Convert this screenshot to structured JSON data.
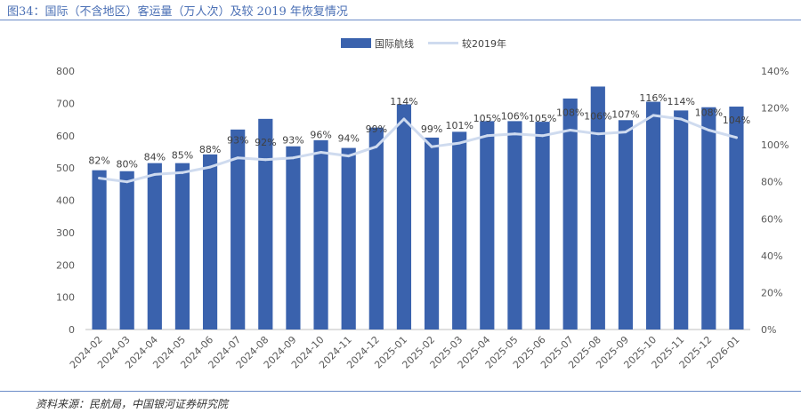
{
  "figure": {
    "title": "图34：国际（不含地区）客运量（万人次）及较 2019 年恢复情况",
    "source": "资料来源：民航局，中国银河证券研究院"
  },
  "colors": {
    "bar": "#3a62ad",
    "line": "#cfdbef",
    "axis": "#bfbfbf",
    "text": "#595959"
  },
  "chart_data": {
    "type": "bar",
    "title": "",
    "categories": [
      "2024-02",
      "2024-03",
      "2024-04",
      "2024-05",
      "2024-06",
      "2024-07",
      "2024-08",
      "2024-09",
      "2024-10",
      "2024-11",
      "2024-12",
      "2025-01",
      "2025-02",
      "2025-03",
      "2025-04",
      "2025-05",
      "2025-06",
      "2025-07",
      "2025-08",
      "2025-09",
      "2025-10",
      "2025-11",
      "2025-12",
      "2026-01"
    ],
    "series": [
      {
        "name": "国际航线",
        "type": "bar",
        "axis": "left",
        "values": [
          493,
          490,
          515,
          515,
          542,
          619,
          652,
          567,
          586,
          562,
          625,
          697,
          594,
          612,
          645,
          645,
          643,
          715,
          752,
          648,
          705,
          678,
          688,
          690
        ]
      },
      {
        "name": "较2019年",
        "type": "line",
        "axis": "right",
        "values": [
          82,
          80,
          84,
          85,
          88,
          93,
          92,
          93,
          96,
          94,
          99,
          114,
          99,
          101,
          105,
          106,
          105,
          108,
          106,
          107,
          116,
          114,
          108,
          104
        ],
        "labels": [
          "82%",
          "80%",
          "84%",
          "85%",
          "88%",
          "93%",
          "92%",
          "93%",
          "96%",
          "94%",
          "99%",
          "114%",
          "99%",
          "101%",
          "105%",
          "106%",
          "105%",
          "108%",
          "106%",
          "107%",
          "116%",
          "114%",
          "108%",
          "104%"
        ]
      }
    ],
    "yleft": {
      "min": 0,
      "max": 800,
      "ticks": [
        "0",
        "100",
        "200",
        "300",
        "400",
        "500",
        "600",
        "700",
        "800"
      ]
    },
    "yright": {
      "min": 0,
      "max": 140,
      "ticks": [
        "0%",
        "20%",
        "40%",
        "60%",
        "80%",
        "100%",
        "120%",
        "140%"
      ]
    },
    "legend": {
      "position": "top-center",
      "items": [
        "国际航线",
        "较2019年"
      ]
    },
    "grid": false
  }
}
